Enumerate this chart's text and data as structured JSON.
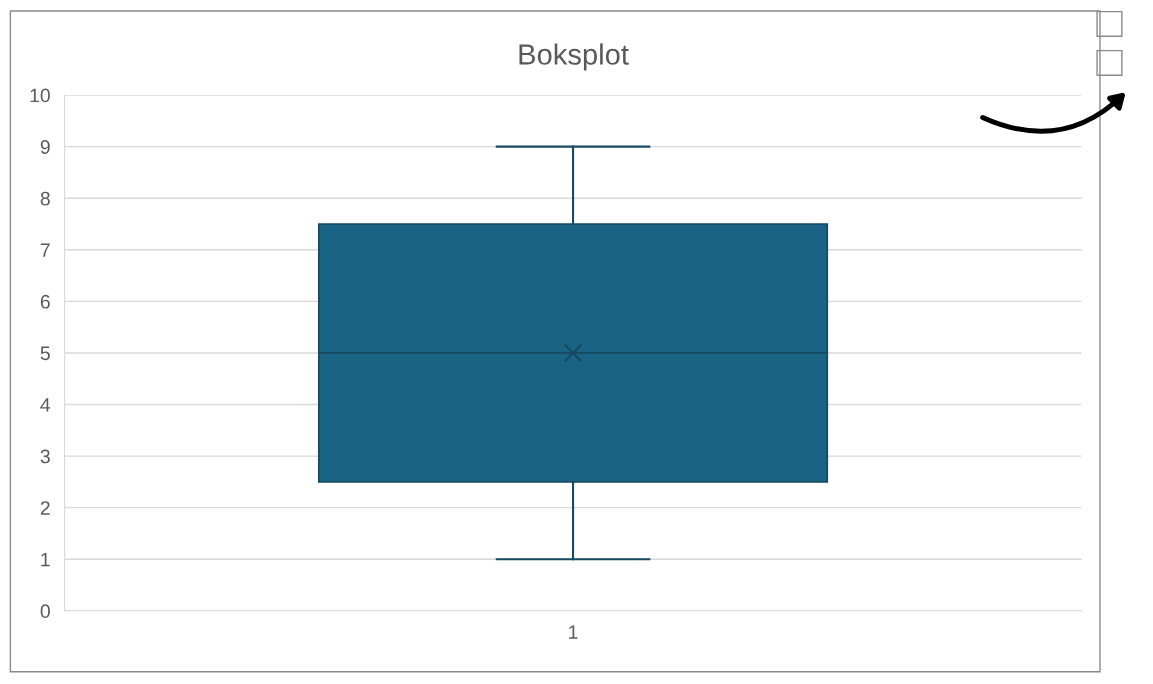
{
  "chart_data": {
    "type": "box",
    "title": "Boksplot",
    "categories": [
      "1"
    ],
    "boxes": [
      {
        "low": 1,
        "q1": 2.5,
        "median": 5,
        "q3": 7.5,
        "high": 9,
        "mean": 5
      }
    ],
    "color": "#1a6384",
    "ylim": [
      0,
      10
    ],
    "yticks": [
      0,
      1,
      2,
      3,
      4,
      5,
      6,
      7,
      8,
      9,
      10
    ],
    "grid": "y"
  }
}
